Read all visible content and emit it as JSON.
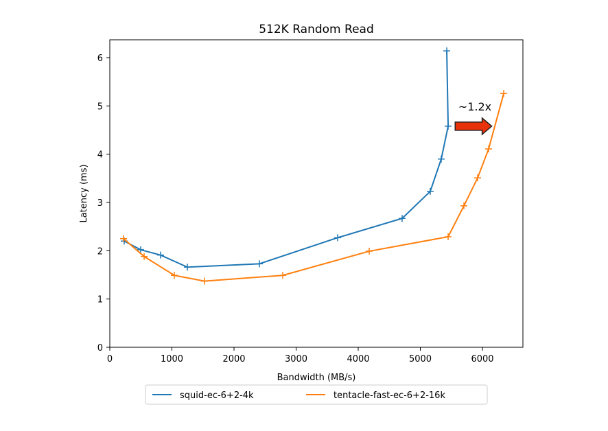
{
  "chart_data": {
    "type": "line",
    "title": "512K  Random Read",
    "xlabel": "Bandwidth (MB/s)",
    "ylabel": "Latency (ms)",
    "xlim": [
      0,
      6700
    ],
    "ylim": [
      0,
      6.35
    ],
    "xticks": [
      0,
      1000,
      2000,
      3000,
      4000,
      5000,
      6000
    ],
    "yticks": [
      0,
      1,
      2,
      3,
      4,
      5,
      6
    ],
    "legend": "bottom-center",
    "series": [
      {
        "name": "squid-ec-6+2-4k",
        "color": "#1f77b4",
        "x": [
          232,
          497,
          818,
          1249,
          2409,
          3669,
          4707,
          5160,
          5337,
          5448,
          5426
        ],
        "y": [
          2.2,
          2.02,
          1.91,
          1.66,
          1.73,
          2.27,
          2.67,
          3.23,
          3.9,
          4.58,
          6.14
        ]
      },
      {
        "name": "tentacle-fast-ec-6+2-16k",
        "color": "#ff7f0e",
        "x": [
          221,
          553,
          1039,
          1525,
          2785,
          4177,
          5448,
          5702,
          5923,
          6100,
          6343
        ],
        "y": [
          2.25,
          1.88,
          1.49,
          1.37,
          1.49,
          1.99,
          2.29,
          2.93,
          3.51,
          4.11,
          5.26
        ]
      }
    ],
    "annotation": {
      "text": "~1.2x",
      "arrow_color": "#e8320a",
      "from": [
        5550,
        4.58
      ],
      "to": [
        6150,
        4.58
      ]
    }
  }
}
